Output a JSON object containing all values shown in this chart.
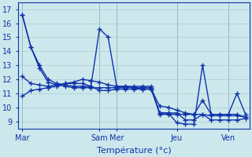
{
  "xlabel": "Température (°c)",
  "background_color": "#cce8ec",
  "grid_color": "#aacccc",
  "line_color": "#1133aa",
  "ylim": [
    8.5,
    17.5
  ],
  "ytick_min": 9,
  "ytick_max": 17,
  "xtick_labels": [
    "Mar",
    "Sam",
    "Mer",
    "Jeu",
    "Ven"
  ],
  "xtick_positions": [
    0,
    9,
    11,
    18,
    24
  ],
  "total_points": 27,
  "series": [
    [
      16.6,
      14.3,
      13.0,
      12.0,
      11.7,
      11.6,
      11.5,
      11.5,
      11.5,
      15.6,
      15.0,
      11.5,
      11.5,
      11.5,
      11.5,
      11.5,
      9.5,
      9.5,
      9.5,
      9.5,
      9.5,
      10.5,
      9.5,
      9.5,
      9.5,
      9.5,
      9.3
    ],
    [
      16.6,
      14.3,
      12.8,
      11.8,
      11.6,
      11.5,
      11.4,
      11.4,
      11.4,
      11.4,
      11.4,
      11.4,
      11.4,
      11.4,
      11.4,
      11.4,
      9.6,
      9.6,
      9.6,
      9.1,
      9.1,
      9.5,
      9.1,
      9.1,
      9.1,
      9.1,
      9.2
    ],
    [
      12.2,
      11.7,
      11.6,
      11.5,
      11.6,
      11.7,
      11.7,
      11.7,
      11.5,
      11.2,
      11.2,
      11.3,
      11.3,
      11.3,
      11.3,
      11.3,
      9.6,
      9.6,
      8.9,
      8.8,
      8.8,
      13.0,
      9.5,
      9.5,
      9.5,
      11.0,
      9.5
    ],
    [
      10.8,
      11.2,
      11.3,
      11.4,
      11.5,
      11.7,
      11.8,
      12.0,
      11.9,
      11.8,
      11.6,
      11.5,
      11.5,
      11.4,
      11.3,
      11.3,
      10.1,
      10.0,
      9.8,
      9.6,
      9.5,
      9.5,
      9.4,
      9.4,
      9.4,
      9.4,
      9.3
    ]
  ],
  "marker": "+",
  "markersize": 4,
  "linewidth": 1.0,
  "xlabel_fontsize": 8,
  "tick_fontsize": 7
}
